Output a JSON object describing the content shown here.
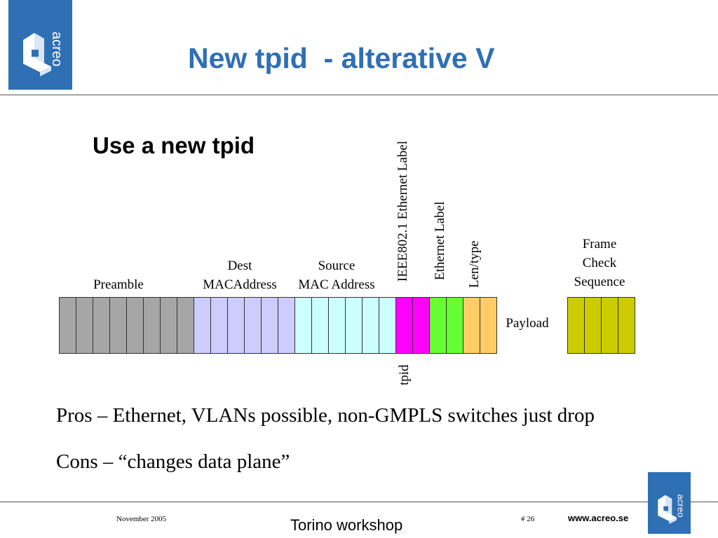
{
  "logo": {
    "text": "acreo",
    "color": "#2f6fb4"
  },
  "title": "New tpid  - alterative V",
  "subtitle": "Use a new tpid",
  "diagram": {
    "field_labels": {
      "preamble": "Preamble",
      "dest_line1": "Dest",
      "dest_line2": "MACAddress",
      "source_line1": "Source",
      "source_line2": "MAC Address",
      "ieee_label": "IEEE802.1 Ethernet Label",
      "ethernet_label": "Ethernet Label",
      "len_type": "Len/type",
      "fcs_line1": "Frame",
      "fcs_line2": "Check",
      "fcs_line3": "Sequence",
      "payload": "Payload",
      "tpid": "tpid"
    },
    "segments": [
      {
        "name": "preamble",
        "cells": 8,
        "color": "#a6a6a6"
      },
      {
        "name": "dest-mac",
        "cells": 6,
        "color": "#ccccff"
      },
      {
        "name": "source-mac",
        "cells": 6,
        "color": "#ccffff"
      },
      {
        "name": "tpid",
        "cells": 2,
        "color": "#ff00ff"
      },
      {
        "name": "ethernet-label",
        "cells": 2,
        "color": "#66ff33"
      },
      {
        "name": "len-type",
        "cells": 2,
        "color": "#ffcc66"
      }
    ],
    "fcs": {
      "cells": 4,
      "color": "#cccc00"
    }
  },
  "pros": "Pros – Ethernet, VLANs possible, non-GMPLS switches just drop",
  "cons": "Cons – “changes data plane”",
  "footer": {
    "date": "November 2005",
    "event": "Torino workshop",
    "page": "# 26",
    "url": "www.acreo.se"
  }
}
